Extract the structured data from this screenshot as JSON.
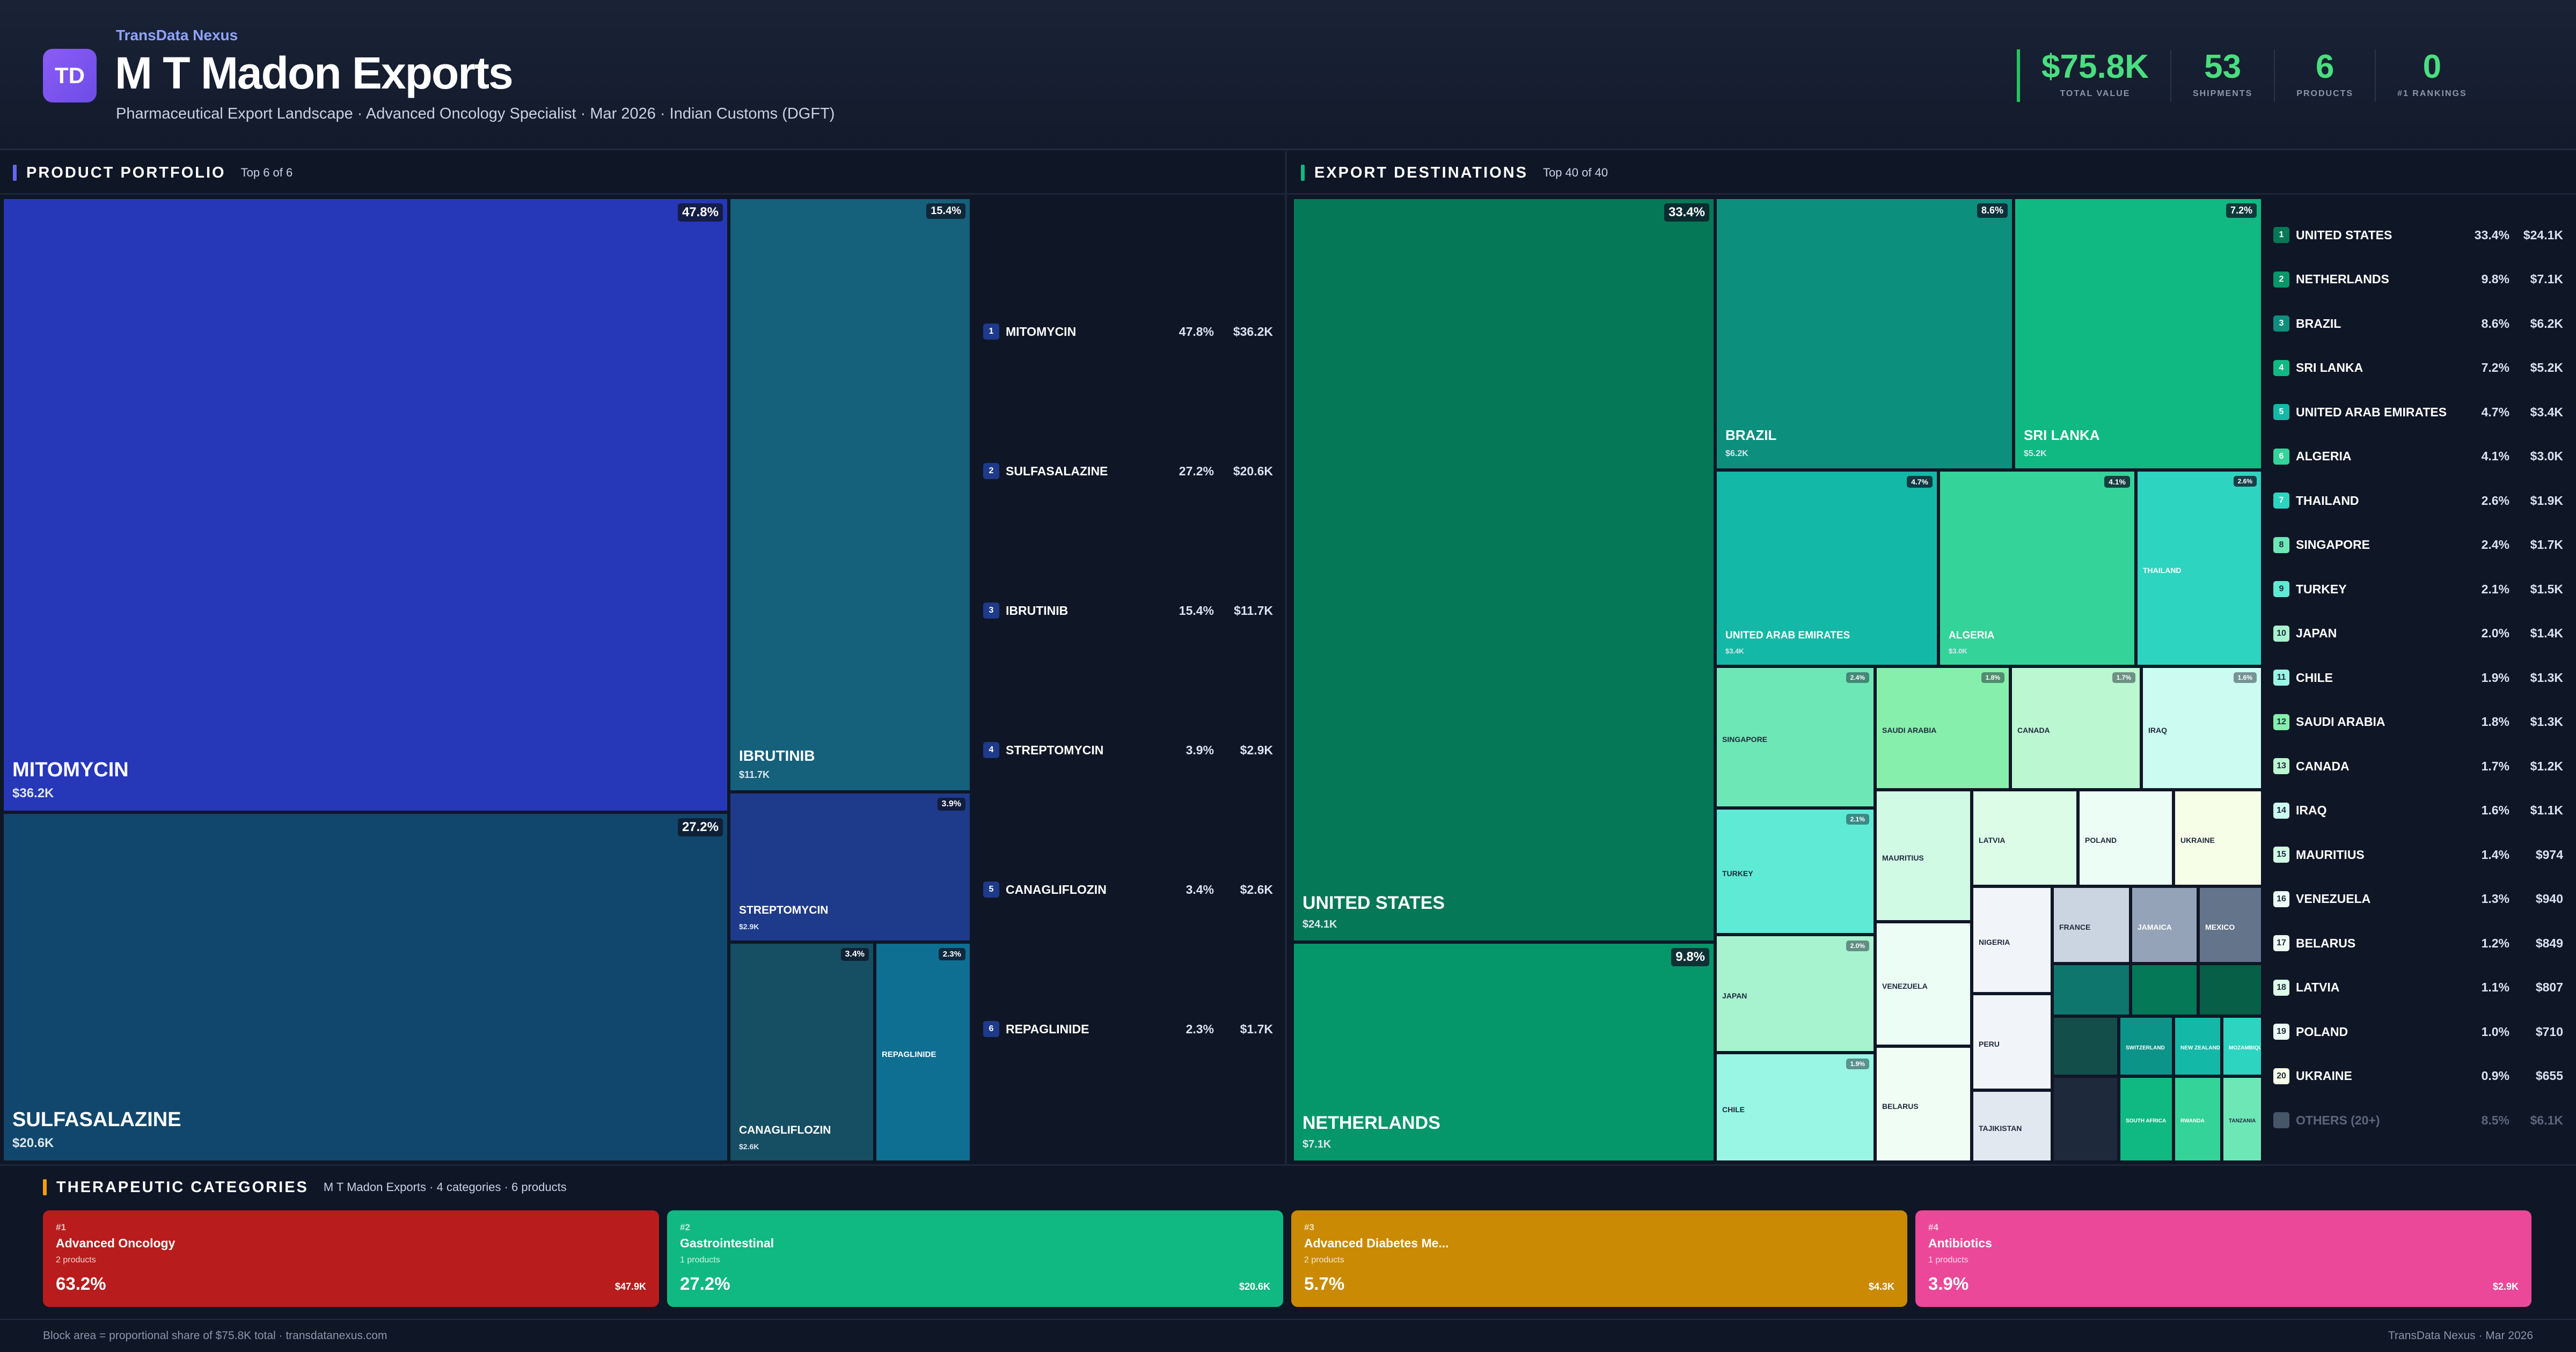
{
  "header": {
    "logo_text": "TD",
    "brand": "TransData Nexus",
    "title": "M T Madon Exports",
    "subtitle": "Pharmaceutical Export Landscape · Advanced Oncology Specialist · Mar 2026 · Indian Customs (DGFT)",
    "kpis": [
      {
        "value": "$75.8K",
        "label": "TOTAL VALUE"
      },
      {
        "value": "53",
        "label": "SHIPMENTS"
      },
      {
        "value": "6",
        "label": "PRODUCTS"
      },
      {
        "value": "0",
        "label": "#1 RANKINGS"
      }
    ]
  },
  "colors": {
    "accent_green": "#4ade80",
    "portfolio_bar": "#6366f1",
    "destinations_bar": "#10b981",
    "categories_bar": "#f59e0b"
  },
  "portfolio": {
    "title": "PRODUCT PORTFOLIO",
    "subtitle": "Top 6 of 6",
    "items": [
      {
        "rank": "1",
        "name": "MITOMYCIN",
        "pct": "47.8%",
        "value": "$36.2K",
        "share": 47.8,
        "color": "#2637b8"
      },
      {
        "rank": "2",
        "name": "SULFASALAZINE",
        "pct": "27.2%",
        "value": "$20.6K",
        "share": 27.2,
        "color": "#11476c"
      },
      {
        "rank": "3",
        "name": "IBRUTINIB",
        "pct": "15.4%",
        "value": "$11.7K",
        "share": 15.4,
        "color": "#15607a"
      },
      {
        "rank": "4",
        "name": "STREPTOMYCIN",
        "pct": "3.9%",
        "value": "$2.9K",
        "share": 3.9,
        "color": "#1e3a8a"
      },
      {
        "rank": "5",
        "name": "CANAGLIFLOZIN",
        "pct": "3.4%",
        "value": "$2.6K",
        "share": 3.4,
        "color": "#164e63"
      },
      {
        "rank": "6",
        "name": "REPAGLINIDE",
        "pct": "2.3%",
        "value": "$1.7K",
        "share": 2.3,
        "color": "#0e6f93"
      }
    ]
  },
  "destinations": {
    "title": "EXPORT DESTINATIONS",
    "subtitle": "Top 40 of 40",
    "tiles": [
      {
        "name": "UNITED STATES",
        "pct": "33.4%",
        "value": "$24.1K",
        "color": "#047857"
      },
      {
        "name": "NETHERLANDS",
        "pct": "9.8%",
        "value": "$7.1K",
        "color": "#059669"
      },
      {
        "name": "BRAZIL",
        "pct": "8.6%",
        "value": "$6.2K",
        "color": "#0d8f7e"
      },
      {
        "name": "SRI LANKA",
        "pct": "7.2%",
        "value": "$5.2K",
        "color": "#10b981"
      },
      {
        "name": "UNITED ARAB EMIRATES",
        "pct": "4.7%",
        "value": "$3.4K",
        "color": "#14b8a6"
      },
      {
        "name": "ALGERIA",
        "pct": "4.1%",
        "value": "$3.0K",
        "color": "#34d399"
      },
      {
        "name": "THAILAND",
        "pct": "2.6%",
        "value": "",
        "color": "#2dd4bf"
      },
      {
        "name": "SINGAPORE",
        "pct": "2.4%",
        "value": "",
        "color": "#6ee7b7"
      },
      {
        "name": "SAUDI ARABIA",
        "pct": "1.8%",
        "value": "",
        "color": "#86efac"
      },
      {
        "name": "CANADA",
        "pct": "1.7%",
        "value": "",
        "color": "#bbf7d0"
      },
      {
        "name": "IRAQ",
        "pct": "1.6%",
        "value": "",
        "color": "#ccfbf1"
      },
      {
        "name": "TURKEY",
        "pct": "2.1%",
        "value": "",
        "color": "#5eead4"
      },
      {
        "name": "MAURITIUS",
        "pct": "",
        "value": "",
        "color": "#d1fae5"
      },
      {
        "name": "LATVIA",
        "pct": "",
        "value": "",
        "color": "#dcfce7"
      },
      {
        "name": "POLAND",
        "pct": "",
        "value": "",
        "color": "#ecfdf5"
      },
      {
        "name": "UKRAINE",
        "pct": "",
        "value": "",
        "color": "#f7fee7"
      },
      {
        "name": "JAPAN",
        "pct": "2.0%",
        "value": "",
        "color": "#a7f3d0"
      },
      {
        "name": "VENEZUELA",
        "pct": "",
        "value": "",
        "color": "#ecfdf5"
      },
      {
        "name": "NIGERIA",
        "pct": "",
        "value": "",
        "color": "#f1f5f9"
      },
      {
        "name": "FRANCE",
        "pct": "",
        "value": "",
        "color": "#cbd5e1"
      },
      {
        "name": "JAMAICA",
        "pct": "",
        "value": "",
        "color": "#94a3b8"
      },
      {
        "name": "MEXICO",
        "pct": "",
        "value": "",
        "color": "#64748b"
      },
      {
        "name": "CHILE",
        "pct": "1.9%",
        "value": "",
        "color": "#99f6e4"
      },
      {
        "name": "PERU",
        "pct": "",
        "value": "",
        "color": "#f1f5f9"
      },
      {
        "name": "BELARUS",
        "pct": "",
        "value": "",
        "color": "#f0fdf4"
      },
      {
        "name": "TAJIKISTAN",
        "pct": "",
        "value": "",
        "color": "#e2e8f0"
      },
      {
        "name": "NEW ZEALAND",
        "pct": "",
        "value": "",
        "color": "#14b8a6"
      },
      {
        "name": "SWITZERLAND",
        "pct": "",
        "value": "",
        "color": "#0d9488"
      },
      {
        "name": "MOZAMBIQUE",
        "pct": "",
        "value": "",
        "color": "#2dd4bf"
      },
      {
        "name": "SOUTH AFRICA",
        "pct": "",
        "value": "",
        "color": "#10b981"
      },
      {
        "name": "RWANDA",
        "pct": "",
        "value": "",
        "color": "#34d399"
      },
      {
        "name": "TANZANIA",
        "pct": "",
        "value": "",
        "color": "#6ee7b7"
      }
    ],
    "ranking": [
      {
        "rank": "1",
        "name": "UNITED STATES",
        "pct": "33.4%",
        "value": "$24.1K",
        "color": "#047857"
      },
      {
        "rank": "2",
        "name": "NETHERLANDS",
        "pct": "9.8%",
        "value": "$7.1K",
        "color": "#059669"
      },
      {
        "rank": "3",
        "name": "BRAZIL",
        "pct": "8.6%",
        "value": "$6.2K",
        "color": "#0d8f7e"
      },
      {
        "rank": "4",
        "name": "SRI LANKA",
        "pct": "7.2%",
        "value": "$5.2K",
        "color": "#10b981"
      },
      {
        "rank": "5",
        "name": "UNITED ARAB EMIRATES",
        "pct": "4.7%",
        "value": "$3.4K",
        "color": "#14b8a6"
      },
      {
        "rank": "6",
        "name": "ALGERIA",
        "pct": "4.1%",
        "value": "$3.0K",
        "color": "#34d399"
      },
      {
        "rank": "7",
        "name": "THAILAND",
        "pct": "2.6%",
        "value": "$1.9K",
        "color": "#2dd4bf"
      },
      {
        "rank": "8",
        "name": "SINGAPORE",
        "pct": "2.4%",
        "value": "$1.7K",
        "color": "#6ee7b7"
      },
      {
        "rank": "9",
        "name": "TURKEY",
        "pct": "2.1%",
        "value": "$1.5K",
        "color": "#5eead4"
      },
      {
        "rank": "10",
        "name": "JAPAN",
        "pct": "2.0%",
        "value": "$1.4K",
        "color": "#a7f3d0"
      },
      {
        "rank": "11",
        "name": "CHILE",
        "pct": "1.9%",
        "value": "$1.3K",
        "color": "#99f6e4"
      },
      {
        "rank": "12",
        "name": "SAUDI ARABIA",
        "pct": "1.8%",
        "value": "$1.3K",
        "color": "#86efac"
      },
      {
        "rank": "13",
        "name": "CANADA",
        "pct": "1.7%",
        "value": "$1.2K",
        "color": "#bbf7d0"
      },
      {
        "rank": "14",
        "name": "IRAQ",
        "pct": "1.6%",
        "value": "$1.1K",
        "color": "#ccfbf1"
      },
      {
        "rank": "15",
        "name": "MAURITIUS",
        "pct": "1.4%",
        "value": "$974",
        "color": "#d1fae5"
      },
      {
        "rank": "16",
        "name": "VENEZUELA",
        "pct": "1.3%",
        "value": "$940",
        "color": "#ecfdf5"
      },
      {
        "rank": "17",
        "name": "BELARUS",
        "pct": "1.2%",
        "value": "$849",
        "color": "#f0fdf4"
      },
      {
        "rank": "18",
        "name": "LATVIA",
        "pct": "1.1%",
        "value": "$807",
        "color": "#dcfce7"
      },
      {
        "rank": "19",
        "name": "POLAND",
        "pct": "1.0%",
        "value": "$710",
        "color": "#ecfdf5"
      },
      {
        "rank": "20",
        "name": "UKRAINE",
        "pct": "0.9%",
        "value": "$655",
        "color": "#f7fee7"
      }
    ],
    "others": {
      "name": "OTHERS (20+)",
      "pct": "8.5%",
      "value": "$6.1K"
    }
  },
  "categories": {
    "title": "THERAPEUTIC CATEGORIES",
    "subtitle": "M T Madon Exports · 4 categories · 6 products",
    "cards": [
      {
        "rank": "#1",
        "name": "Advanced Oncology",
        "products": "2 products",
        "pct": "63.2%",
        "value": "$47.9K",
        "color": "#b91c1c"
      },
      {
        "rank": "#2",
        "name": "Gastrointestinal",
        "products": "1 products",
        "pct": "27.2%",
        "value": "$20.6K",
        "color": "#10b981"
      },
      {
        "rank": "#3",
        "name": "Advanced Diabetes Me...",
        "products": "2 products",
        "pct": "5.7%",
        "value": "$4.3K",
        "color": "#ca8a04"
      },
      {
        "rank": "#4",
        "name": "Antibiotics",
        "products": "1 products",
        "pct": "3.9%",
        "value": "$2.9K",
        "color": "#ec4899"
      }
    ]
  },
  "footer": {
    "left": "Block area = proportional share of $75.8K total · transdatanexus.com",
    "right": "TransData Nexus · Mar 2026"
  }
}
